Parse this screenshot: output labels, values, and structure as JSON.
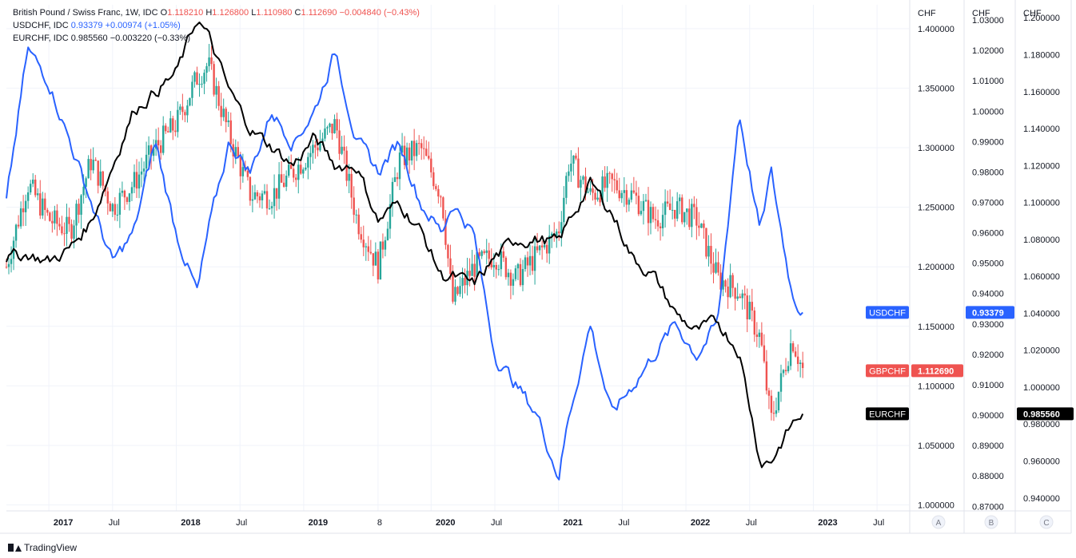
{
  "legend": {
    "gbpchf": {
      "name": "British Pound / Swiss Franc, 1W, IDC",
      "o_label": "O",
      "o": "1.118210",
      "h_label": "H",
      "h": "1.126800",
      "l_label": "L",
      "l": "1.110980",
      "c_label": "C",
      "c": "1.112690",
      "change": "−0.004840 (−0.43%)"
    },
    "usdchf": {
      "name": "USDCHF, IDC",
      "value": "0.93379",
      "change": "+0.00974 (+1.05%)"
    },
    "eurchf": {
      "name": "EURCHF, IDC",
      "value": "0.985560",
      "change": "−0.003220 (−0.33%)"
    }
  },
  "branding": "TradingView",
  "colors": {
    "up": "#26a69a",
    "down": "#ef5350",
    "usdchf": "#2962ff",
    "eurchf": "#000000",
    "grid": "#f0f3fa",
    "axis_text": "#131722"
  },
  "chart_data": {
    "type": "line",
    "title": "British Pound / Swiss Franc, 1W, IDC",
    "x_ticks": [
      "2017",
      "Jul",
      "2018",
      "Jul",
      "2019",
      "8",
      "2020",
      "Jul",
      "2021",
      "Jul",
      "2022",
      "Jul",
      "2023",
      "Jul"
    ],
    "x_range": [
      "2016-09",
      "2023-10"
    ],
    "axes": [
      {
        "id": "A",
        "unit": "CHF",
        "min": 0.995,
        "max": 1.42,
        "ticks": [
          "1.000000",
          "1.050000",
          "1.100000",
          "1.150000",
          "1.200000",
          "1.250000",
          "1.300000",
          "1.350000",
          "1.400000"
        ]
      },
      {
        "id": "B",
        "unit": "CHF",
        "min": 0.8685,
        "max": 1.035,
        "ticks": [
          "0.87000",
          "0.88000",
          "0.89000",
          "0.90000",
          "0.91000",
          "0.92000",
          "0.93000",
          "0.94000",
          "0.95000",
          "0.96000",
          "0.97000",
          "0.98000",
          "0.99000",
          "1.00000",
          "1.01000",
          "1.02000",
          "1.03000"
        ]
      },
      {
        "id": "C",
        "unit": "CHF",
        "min": 0.933,
        "max": 1.207,
        "ticks": [
          "0.940000",
          "0.960000",
          "0.980000",
          "1.000000",
          "1.020000",
          "1.040000",
          "1.060000",
          "1.080000",
          "1.100000",
          "1.120000",
          "1.140000",
          "1.160000",
          "1.180000",
          "1.200000"
        ]
      }
    ],
    "series": [
      {
        "name": "GBPCHF",
        "type": "candlestick",
        "axis": "A",
        "last": "1.112690",
        "x": [
          "2016-09",
          "2016-11",
          "2017-01",
          "2017-03",
          "2017-05",
          "2017-07",
          "2017-09",
          "2017-11",
          "2018-01",
          "2018-03",
          "2018-04",
          "2018-06",
          "2018-08",
          "2018-10",
          "2018-12",
          "2019-02",
          "2019-04",
          "2019-06",
          "2019-08",
          "2019-10",
          "2019-12",
          "2020-02",
          "2020-03",
          "2020-05",
          "2020-07",
          "2020-09",
          "2020-11",
          "2021-01",
          "2021-02",
          "2021-04",
          "2021-06",
          "2021-08",
          "2021-10",
          "2021-12",
          "2022-02",
          "2022-04",
          "2022-06",
          "2022-08",
          "2022-09",
          "2022-11",
          "2022-12"
        ],
        "values": [
          1.2,
          1.27,
          1.24,
          1.23,
          1.29,
          1.25,
          1.27,
          1.3,
          1.32,
          1.36,
          1.37,
          1.31,
          1.26,
          1.26,
          1.28,
          1.3,
          1.32,
          1.24,
          1.2,
          1.29,
          1.3,
          1.26,
          1.17,
          1.2,
          1.21,
          1.19,
          1.21,
          1.23,
          1.29,
          1.26,
          1.27,
          1.26,
          1.24,
          1.25,
          1.24,
          1.19,
          1.18,
          1.14,
          1.07,
          1.14,
          1.113
        ]
      },
      {
        "name": "USDCHF",
        "type": "line",
        "axis": "B",
        "last": "0.93379",
        "x": [
          "2016-09",
          "2016-11",
          "2017-01",
          "2017-03",
          "2017-05",
          "2017-07",
          "2017-09",
          "2017-11",
          "2018-01",
          "2018-03",
          "2018-04",
          "2018-06",
          "2018-08",
          "2018-10",
          "2018-12",
          "2019-02",
          "2019-04",
          "2019-06",
          "2019-08",
          "2019-10",
          "2019-12",
          "2020-02",
          "2020-03",
          "2020-05",
          "2020-07",
          "2020-09",
          "2020-11",
          "2021-01",
          "2021-02",
          "2021-04",
          "2021-06",
          "2021-08",
          "2021-10",
          "2021-12",
          "2022-02",
          "2022-04",
          "2022-06",
          "2022-08",
          "2022-09",
          "2022-11",
          "2022-12"
        ],
        "values": [
          0.97,
          1.02,
          1.01,
          0.99,
          0.97,
          0.95,
          0.96,
          0.99,
          0.96,
          0.94,
          0.96,
          0.99,
          0.98,
          1.0,
          0.99,
          1.0,
          1.02,
          0.99,
          0.98,
          0.99,
          0.97,
          0.96,
          0.97,
          0.96,
          0.92,
          0.91,
          0.9,
          0.88,
          0.9,
          0.93,
          0.9,
          0.91,
          0.92,
          0.93,
          0.92,
          0.93,
          1.0,
          0.96,
          0.98,
          0.94,
          0.93379
        ]
      },
      {
        "name": "EURCHF",
        "type": "line",
        "axis": "C",
        "last": "0.985560",
        "x": [
          "2016-09",
          "2016-11",
          "2017-01",
          "2017-03",
          "2017-05",
          "2017-07",
          "2017-09",
          "2017-11",
          "2018-01",
          "2018-03",
          "2018-04",
          "2018-06",
          "2018-08",
          "2018-10",
          "2018-12",
          "2019-02",
          "2019-04",
          "2019-06",
          "2019-08",
          "2019-10",
          "2019-12",
          "2020-02",
          "2020-03",
          "2020-05",
          "2020-07",
          "2020-09",
          "2020-11",
          "2021-01",
          "2021-02",
          "2021-04",
          "2021-06",
          "2021-08",
          "2021-10",
          "2021-12",
          "2022-02",
          "2022-04",
          "2022-06",
          "2022-08",
          "2022-09",
          "2022-11",
          "2022-12"
        ],
        "values": [
          1.07,
          1.072,
          1.068,
          1.075,
          1.09,
          1.12,
          1.15,
          1.16,
          1.17,
          1.2,
          1.19,
          1.16,
          1.14,
          1.13,
          1.12,
          1.135,
          1.12,
          1.12,
          1.09,
          1.1,
          1.085,
          1.06,
          1.06,
          1.055,
          1.07,
          1.08,
          1.08,
          1.078,
          1.09,
          1.11,
          1.095,
          1.07,
          1.06,
          1.04,
          1.03,
          1.035,
          1.02,
          0.96,
          0.96,
          0.98,
          0.98556
        ]
      }
    ]
  }
}
